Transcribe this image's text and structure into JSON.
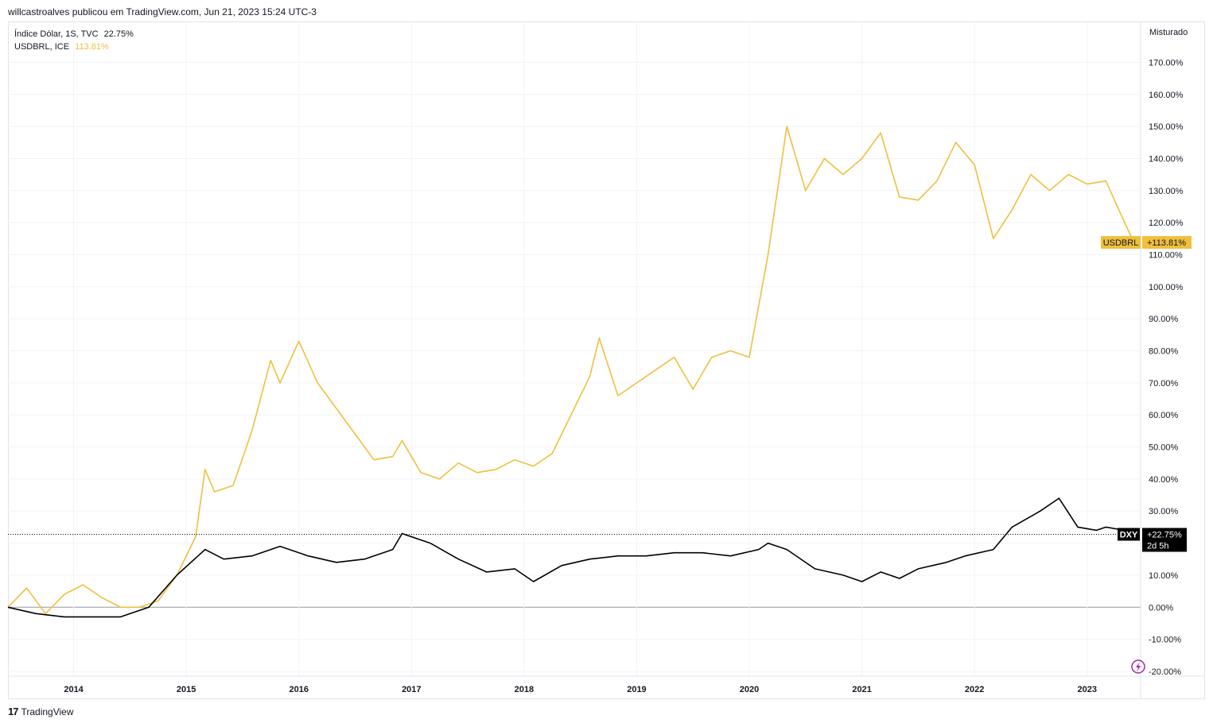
{
  "header": {
    "attribution": "willcastroalves publicou em TradingView.com, Jun 21, 2023 15:24 UTC-3"
  },
  "legend": {
    "dxy": {
      "name": "Índice Dólar, 1S, TVC",
      "value": "22.75%"
    },
    "brl": {
      "name": "USDBRL, ICE",
      "value": "113.81%"
    }
  },
  "scale_mode": "Misturado",
  "footer": {
    "brand": "TradingView",
    "logo": "tradingview-logo-icon"
  },
  "colors": {
    "brl": "#f0bf3c",
    "dxy": "#000000",
    "grid": "#f0f3fa",
    "zero_line": "#9598a1",
    "text": "#131722",
    "axis_text": "#131722"
  },
  "icons": {
    "lightning": "lightning-icon"
  },
  "chart_data": {
    "type": "line",
    "y_unit": "%",
    "ylim": [
      -20,
      180
    ],
    "x_range": [
      "2013-06",
      "2023-06"
    ],
    "x_tick_labels": [
      "2014",
      "2015",
      "2016",
      "2017",
      "2018",
      "2019",
      "2020",
      "2021",
      "2022",
      "2023"
    ],
    "y_tick_labels": [
      "170.00%",
      "160.00%",
      "150.00%",
      "140.00%",
      "130.00%",
      "120.00%",
      "110.00%",
      "100.00%",
      "90.00%",
      "80.00%",
      "70.00%",
      "60.00%",
      "50.00%",
      "40.00%",
      "30.00%",
      "20.00%",
      "10.00%",
      "0.00%",
      "-10.00%",
      "-20.00%"
    ],
    "y_ticks": [
      170,
      160,
      150,
      140,
      130,
      120,
      110,
      100,
      90,
      80,
      70,
      60,
      50,
      40,
      30,
      20,
      10,
      0,
      -10,
      -20
    ],
    "grid": true,
    "series": [
      {
        "name": "USDBRL",
        "label": "USDBRL",
        "value_label": "+113.81%",
        "last_value": 113.81,
        "points": [
          [
            "2013-06",
            0
          ],
          [
            "2013-08",
            6
          ],
          [
            "2013-10",
            -2
          ],
          [
            "2013-12",
            4
          ],
          [
            "2014-02",
            7
          ],
          [
            "2014-04",
            3
          ],
          [
            "2014-06",
            0
          ],
          [
            "2014-08",
            0
          ],
          [
            "2014-10",
            2
          ],
          [
            "2014-12",
            10
          ],
          [
            "2015-02",
            22
          ],
          [
            "2015-03",
            43
          ],
          [
            "2015-04",
            36
          ],
          [
            "2015-06",
            38
          ],
          [
            "2015-08",
            55
          ],
          [
            "2015-10",
            77
          ],
          [
            "2015-11",
            70
          ],
          [
            "2016-01",
            83
          ],
          [
            "2016-03",
            70
          ],
          [
            "2016-05",
            62
          ],
          [
            "2016-07",
            54
          ],
          [
            "2016-09",
            46
          ],
          [
            "2016-11",
            47
          ],
          [
            "2016-12",
            52
          ],
          [
            "2017-02",
            42
          ],
          [
            "2017-04",
            40
          ],
          [
            "2017-06",
            45
          ],
          [
            "2017-08",
            42
          ],
          [
            "2017-10",
            43
          ],
          [
            "2017-12",
            46
          ],
          [
            "2018-02",
            44
          ],
          [
            "2018-04",
            48
          ],
          [
            "2018-06",
            60
          ],
          [
            "2018-08",
            72
          ],
          [
            "2018-09",
            84
          ],
          [
            "2018-11",
            66
          ],
          [
            "2019-01",
            70
          ],
          [
            "2019-03",
            74
          ],
          [
            "2019-05",
            78
          ],
          [
            "2019-07",
            68
          ],
          [
            "2019-09",
            78
          ],
          [
            "2019-11",
            80
          ],
          [
            "2020-01",
            78
          ],
          [
            "2020-03",
            110
          ],
          [
            "2020-05",
            150
          ],
          [
            "2020-07",
            130
          ],
          [
            "2020-09",
            140
          ],
          [
            "2020-11",
            135
          ],
          [
            "2021-01",
            140
          ],
          [
            "2021-03",
            148
          ],
          [
            "2021-05",
            128
          ],
          [
            "2021-07",
            127
          ],
          [
            "2021-09",
            133
          ],
          [
            "2021-11",
            145
          ],
          [
            "2022-01",
            138
          ],
          [
            "2022-03",
            115
          ],
          [
            "2022-05",
            124
          ],
          [
            "2022-07",
            135
          ],
          [
            "2022-09",
            130
          ],
          [
            "2022-11",
            135
          ],
          [
            "2023-01",
            132
          ],
          [
            "2023-03",
            133
          ],
          [
            "2023-05",
            120
          ],
          [
            "2023-06",
            113.81
          ]
        ]
      },
      {
        "name": "DXY",
        "label": "DXY",
        "value_label": "+22.75%",
        "countdown": "2d 5h",
        "last_value": 22.75,
        "points": [
          [
            "2013-06",
            0
          ],
          [
            "2013-09",
            -2
          ],
          [
            "2013-12",
            -3
          ],
          [
            "2014-03",
            -3
          ],
          [
            "2014-06",
            -3
          ],
          [
            "2014-09",
            0
          ],
          [
            "2014-12",
            10
          ],
          [
            "2015-03",
            18
          ],
          [
            "2015-05",
            15
          ],
          [
            "2015-08",
            16
          ],
          [
            "2015-11",
            19
          ],
          [
            "2016-02",
            16
          ],
          [
            "2016-05",
            14
          ],
          [
            "2016-08",
            15
          ],
          [
            "2016-11",
            18
          ],
          [
            "2016-12",
            23
          ],
          [
            "2017-03",
            20
          ],
          [
            "2017-06",
            15
          ],
          [
            "2017-09",
            11
          ],
          [
            "2017-12",
            12
          ],
          [
            "2018-02",
            8
          ],
          [
            "2018-05",
            13
          ],
          [
            "2018-08",
            15
          ],
          [
            "2018-11",
            16
          ],
          [
            "2019-02",
            16
          ],
          [
            "2019-05",
            17
          ],
          [
            "2019-08",
            17
          ],
          [
            "2019-11",
            16
          ],
          [
            "2020-02",
            18
          ],
          [
            "2020-03",
            20
          ],
          [
            "2020-05",
            18
          ],
          [
            "2020-08",
            12
          ],
          [
            "2020-11",
            10
          ],
          [
            "2021-01",
            8
          ],
          [
            "2021-03",
            11
          ],
          [
            "2021-05",
            9
          ],
          [
            "2021-07",
            12
          ],
          [
            "2021-10",
            14
          ],
          [
            "2021-12",
            16
          ],
          [
            "2022-03",
            18
          ],
          [
            "2022-05",
            25
          ],
          [
            "2022-08",
            30
          ],
          [
            "2022-10",
            34
          ],
          [
            "2022-12",
            25
          ],
          [
            "2023-02",
            24
          ],
          [
            "2023-03",
            25
          ],
          [
            "2023-05",
            24
          ],
          [
            "2023-06",
            22.75
          ]
        ]
      }
    ],
    "zero_line": 0
  }
}
